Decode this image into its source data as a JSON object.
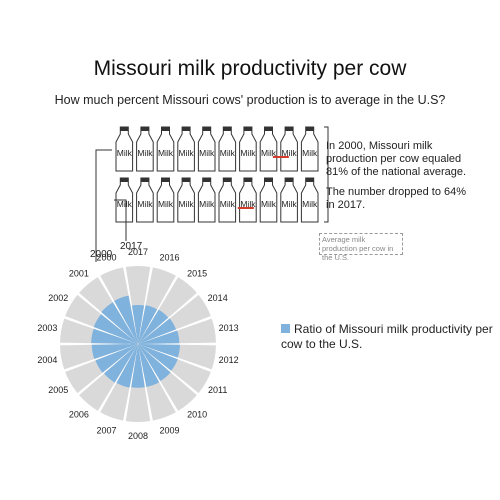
{
  "title": "Missouri milk productivity per cow",
  "subtitle": "How much percent Missouri cows' production is to average in the U.S?",
  "bottle_label": "Milk",
  "notes": {
    "n2000": "In 2000, Missouri milk production per cow equaled 81% of the national average.",
    "n2017": "The number dropped to 64% in 2017.",
    "legend_box": "Average milk production per cow in the U.S."
  },
  "bottle_rows": [
    {
      "year": "2000",
      "ratio": 0.81
    },
    {
      "year": "2017",
      "ratio": 0.64
    }
  ],
  "legend_label": "Ratio of Missouri milk productivity per cow to the U.S.",
  "colors": {
    "ratio": "#7fb2dd",
    "base": "#d9d9d9",
    "accent": "#d33a2c"
  },
  "chart_data": {
    "type": "radial-bar",
    "categories": [
      "2000",
      "2001",
      "2002",
      "2003",
      "2004",
      "2005",
      "2006",
      "2007",
      "2008",
      "2009",
      "2010",
      "2011",
      "2012",
      "2013",
      "2014",
      "2015",
      "2016",
      "2017"
    ],
    "values": [
      0.81,
      0.8,
      0.78,
      0.77,
      0.76,
      0.75,
      0.74,
      0.73,
      0.72,
      0.72,
      0.71,
      0.7,
      0.69,
      0.68,
      0.67,
      0.66,
      0.65,
      0.64
    ],
    "max": 1.0
  }
}
